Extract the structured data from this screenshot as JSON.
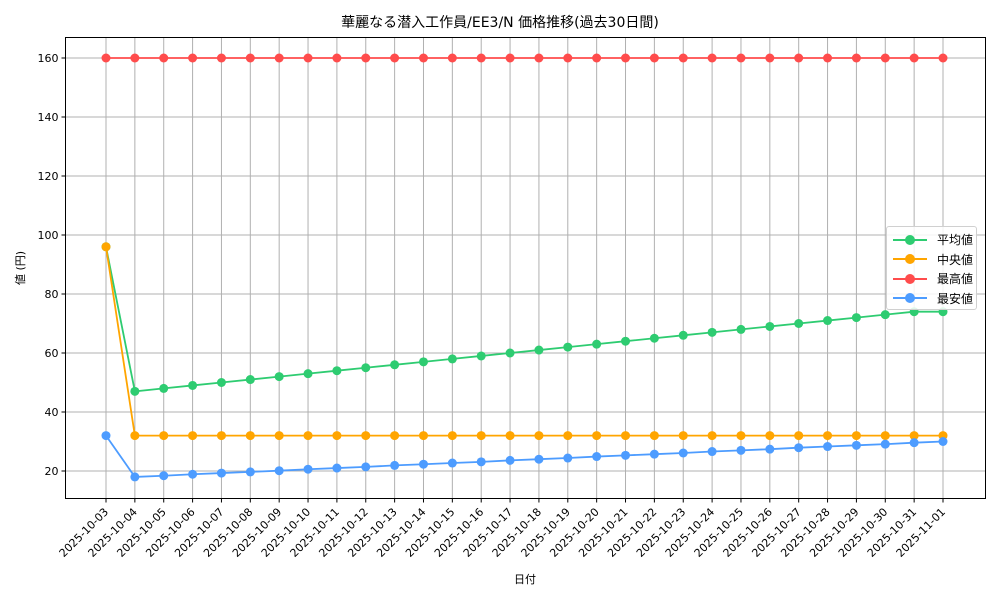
{
  "chart_data": {
    "type": "line",
    "title": "華麗なる潜入工作員/EE3/N 価格推移(過去30日間)",
    "xlabel": "日付",
    "ylabel": "値 (円)",
    "ylim": [
      11,
      167
    ],
    "yticks": [
      20,
      40,
      60,
      80,
      100,
      120,
      140,
      160
    ],
    "grid": true,
    "legend_position": "center right",
    "x": [
      "2025-10-03",
      "2025-10-04",
      "2025-10-05",
      "2025-10-06",
      "2025-10-07",
      "2025-10-08",
      "2025-10-09",
      "2025-10-10",
      "2025-10-11",
      "2025-10-12",
      "2025-10-13",
      "2025-10-14",
      "2025-10-15",
      "2025-10-16",
      "2025-10-17",
      "2025-10-18",
      "2025-10-19",
      "2025-10-20",
      "2025-10-21",
      "2025-10-22",
      "2025-10-23",
      "2025-10-24",
      "2025-10-25",
      "2025-10-26",
      "2025-10-27",
      "2025-10-28",
      "2025-10-29",
      "2025-10-30",
      "2025-10-31",
      "2025-11-01"
    ],
    "series": [
      {
        "name": "平均値",
        "color": "#2ecc71",
        "values": [
          96,
          47,
          48,
          49,
          50,
          51,
          52,
          53,
          54,
          55,
          56,
          57,
          58,
          59,
          60,
          61,
          62,
          63,
          64,
          65,
          66,
          67,
          68,
          69,
          70,
          71,
          72,
          73,
          74,
          74
        ]
      },
      {
        "name": "中央値",
        "color": "#ffa500",
        "values": [
          96,
          32,
          32,
          32,
          32,
          32,
          32,
          32,
          32,
          32,
          32,
          32,
          32,
          32,
          32,
          32,
          32,
          32,
          32,
          32,
          32,
          32,
          32,
          32,
          32,
          32,
          32,
          32,
          32,
          32
        ]
      },
      {
        "name": "最高値",
        "color": "#ff4c4c",
        "values": [
          160,
          160,
          160,
          160,
          160,
          160,
          160,
          160,
          160,
          160,
          160,
          160,
          160,
          160,
          160,
          160,
          160,
          160,
          160,
          160,
          160,
          160,
          160,
          160,
          160,
          160,
          160,
          160,
          160,
          160
        ]
      },
      {
        "name": "最安値",
        "color": "#4d9cff",
        "values": [
          32,
          18.0,
          18.4,
          18.9,
          19.3,
          19.7,
          20.1,
          20.6,
          21.0,
          21.4,
          21.9,
          22.3,
          22.7,
          23.1,
          23.6,
          24.0,
          24.4,
          24.9,
          25.3,
          25.7,
          26.1,
          26.6,
          27.0,
          27.4,
          27.9,
          28.3,
          28.7,
          29.1,
          29.6,
          30.0
        ]
      }
    ]
  }
}
